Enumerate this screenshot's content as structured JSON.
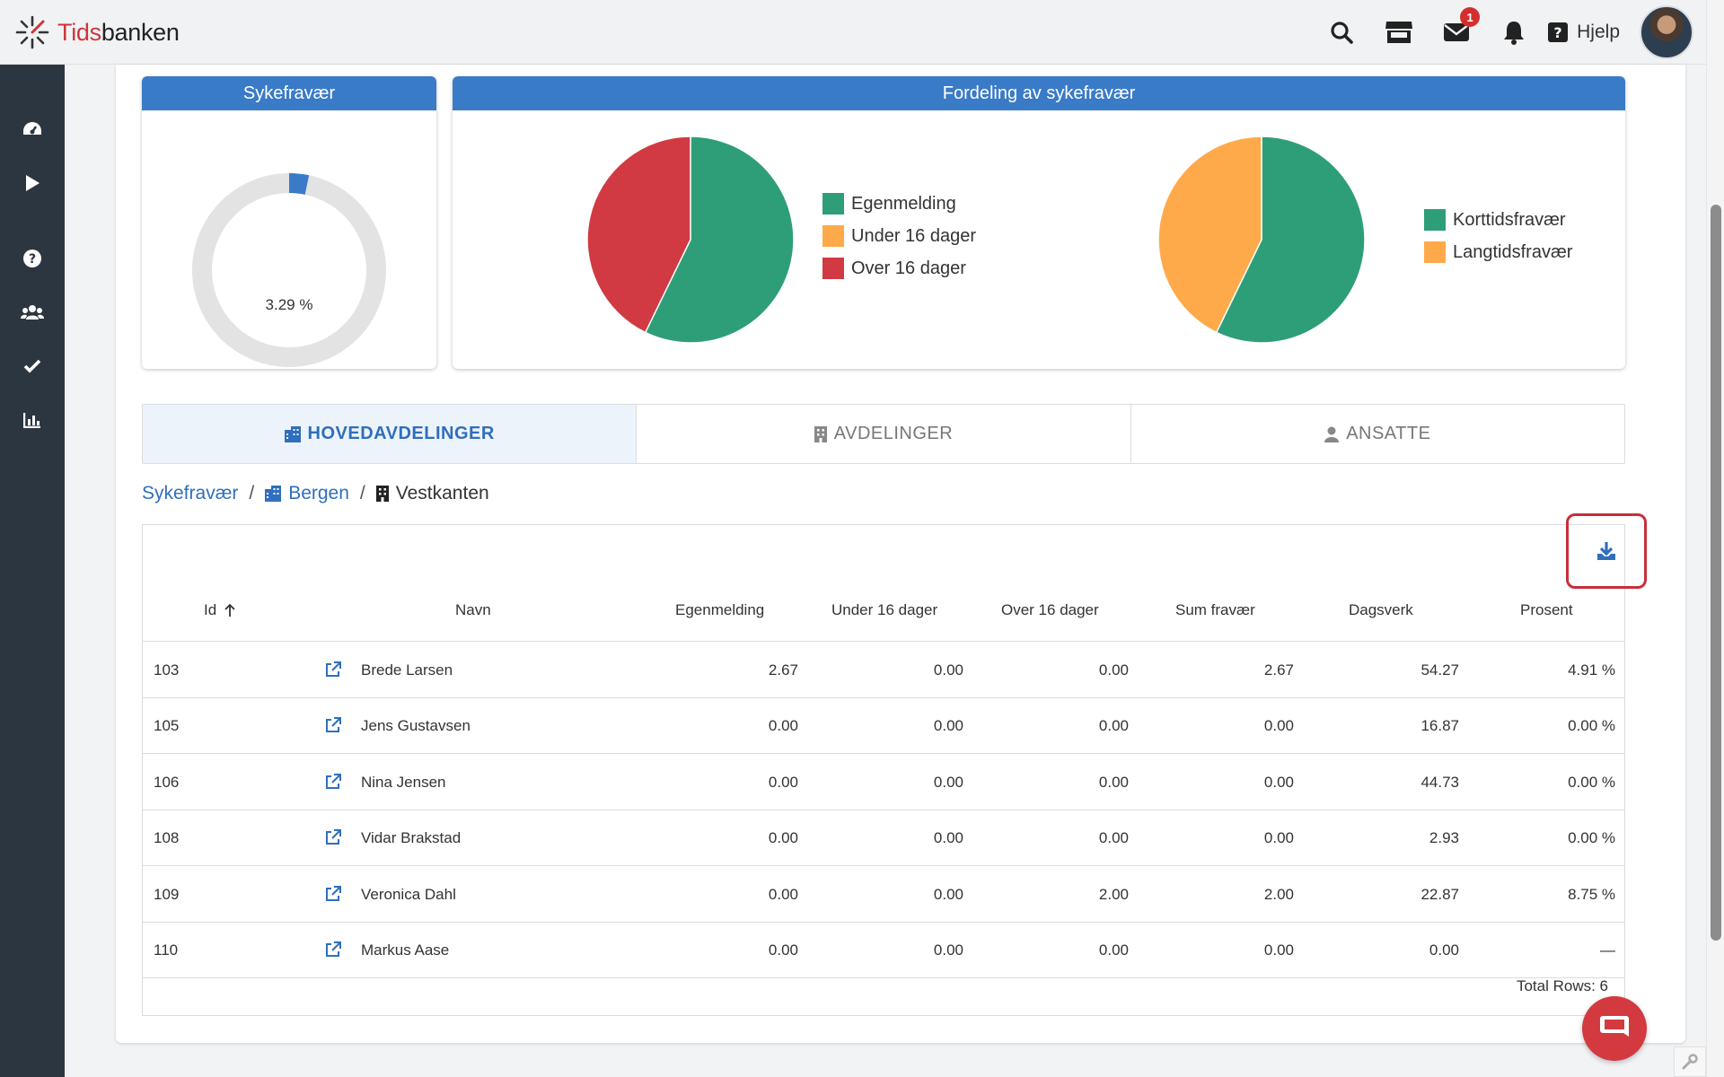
{
  "app": {
    "brand_prefix": "Tids",
    "brand_suffix": "banken"
  },
  "header": {
    "icons": [
      "search-icon",
      "store-icon",
      "mail-icon",
      "bell-icon"
    ],
    "mail_badge": "1",
    "help_label": "Hjelp"
  },
  "sidebar": {
    "icons": [
      "dashboard-icon",
      "play-icon",
      "help-icon",
      "users-icon",
      "check-icon",
      "chart-icon"
    ]
  },
  "panels": {
    "sick_leave": {
      "title": "Sykefravær",
      "value_label": "3.29 %",
      "percent": 3.29,
      "color": "#3a7bc8"
    },
    "distribution": {
      "title": "Fordeling av sykefravær",
      "pie1": [
        {
          "label": "Egenmelding",
          "value": 57.2,
          "color": "#2e9e78"
        },
        {
          "label": "Under 16 dager",
          "value": 0,
          "color": "#ffaa4a"
        },
        {
          "label": "Over 16 dager",
          "value": 42.8,
          "color": "#d13a42"
        }
      ],
      "pie2": [
        {
          "label": "Korttidsfravær",
          "value": 57.2,
          "color": "#2e9e78"
        },
        {
          "label": "Langtidsfravær",
          "value": 42.8,
          "color": "#ffaa4a"
        }
      ]
    }
  },
  "tabs": [
    {
      "label": "HOVEDAVDELINGER",
      "icon": "building-icon",
      "active": true
    },
    {
      "label": "AVDELINGER",
      "icon": "office-icon",
      "active": false
    },
    {
      "label": "ANSATTE",
      "icon": "person-icon",
      "active": false
    }
  ],
  "breadcrumb": {
    "root": "Sykefravær",
    "level1": "Bergen",
    "current": "Vestkanten"
  },
  "table": {
    "columns": [
      "Id",
      "Navn",
      "Egenmelding",
      "Under 16 dager",
      "Over 16 dager",
      "Sum fravær",
      "Dagsverk",
      "Prosent"
    ],
    "rows": [
      {
        "id": "103",
        "name": "Brede Larsen",
        "egen": "2.67",
        "under": "0.00",
        "over": "0.00",
        "sum": "2.67",
        "dags": "54.27",
        "pct": "4.91 %"
      },
      {
        "id": "105",
        "name": "Jens Gustavsen",
        "egen": "0.00",
        "under": "0.00",
        "over": "0.00",
        "sum": "0.00",
        "dags": "16.87",
        "pct": "0.00 %"
      },
      {
        "id": "106",
        "name": "Nina Jensen",
        "egen": "0.00",
        "under": "0.00",
        "over": "0.00",
        "sum": "0.00",
        "dags": "44.73",
        "pct": "0.00 %"
      },
      {
        "id": "108",
        "name": "Vidar Brakstad",
        "egen": "0.00",
        "under": "0.00",
        "over": "0.00",
        "sum": "0.00",
        "dags": "2.93",
        "pct": "0.00 %"
      },
      {
        "id": "109",
        "name": "Veronica Dahl",
        "egen": "0.00",
        "under": "0.00",
        "over": "2.00",
        "sum": "2.00",
        "dags": "22.87",
        "pct": "8.75 %"
      },
      {
        "id": "110",
        "name": "Markus Aase",
        "egen": "0.00",
        "under": "0.00",
        "over": "0.00",
        "sum": "0.00",
        "dags": "0.00",
        "pct": "—"
      }
    ],
    "total_rows": "Total Rows: 6"
  }
}
